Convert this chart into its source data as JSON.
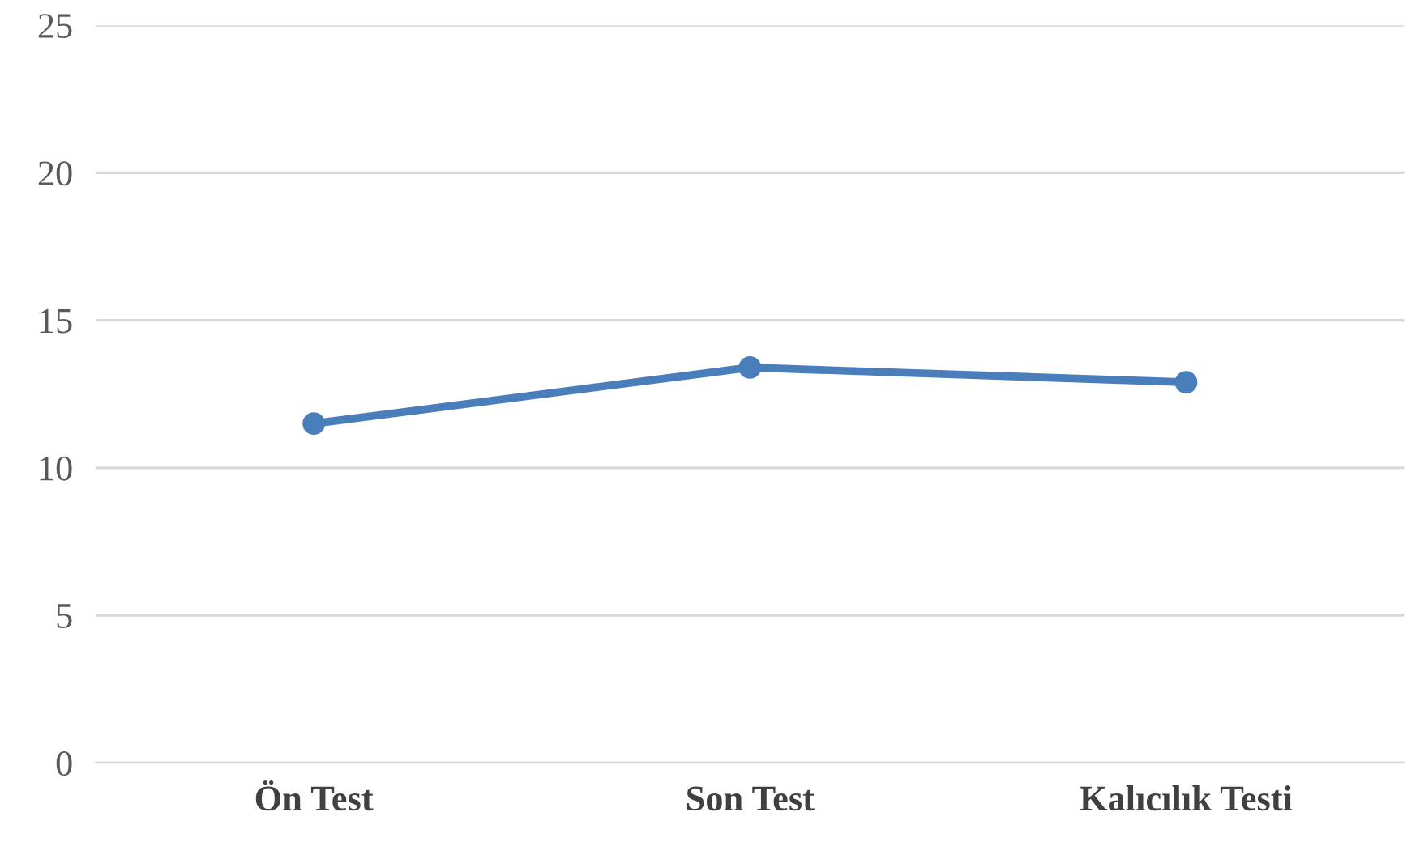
{
  "chart_data": {
    "type": "line",
    "categories": [
      "Ön Test",
      "Son Test",
      "Kalıcılık Testi"
    ],
    "series": [
      {
        "color": "#4a7ebb",
        "values": [
          11.5,
          13.4,
          12.9
        ]
      }
    ],
    "ylim": [
      0,
      25
    ],
    "yticks": [
      0,
      5,
      10,
      15,
      20,
      25
    ],
    "grid": "y",
    "marker": "circle",
    "line_style": "solid",
    "legend": false
  }
}
